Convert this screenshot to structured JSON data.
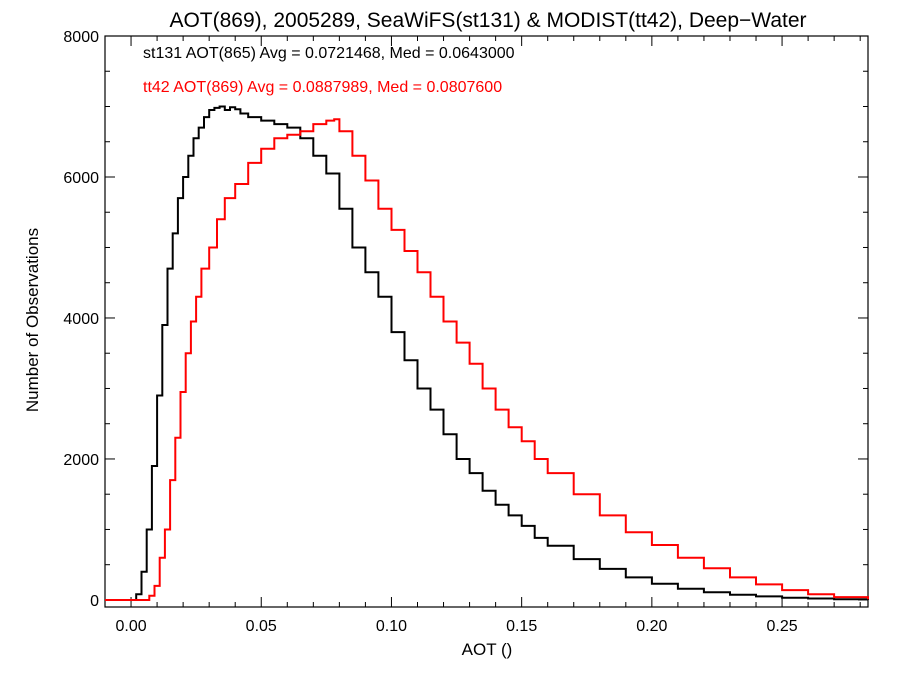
{
  "chart_data": {
    "type": "line",
    "title": "AOT(869), 2005289, SeaWiFS(st131) & MODIST(tt42), Deep−Water",
    "xlabel": "AOT ()",
    "ylabel": "Number of Observations",
    "xlim": [
      -0.01,
      0.283
    ],
    "ylim": [
      -100,
      8000
    ],
    "x_ticks": [
      0.0,
      0.05,
      0.1,
      0.15,
      0.2,
      0.25
    ],
    "x_tick_labels": [
      "0.00",
      "0.05",
      "0.10",
      "0.15",
      "0.20",
      "0.25"
    ],
    "y_ticks": [
      0,
      2000,
      4000,
      6000,
      8000
    ],
    "y_tick_labels": [
      "0",
      "2000",
      "4000",
      "6000",
      "8000"
    ],
    "grid": false,
    "step": true,
    "annotations": [
      {
        "text": "st131 AOT(865) Avg = 0.0721468, Med = 0.0643000",
        "color": "#000000"
      },
      {
        "text": "tt42 AOT(869) Avg = 0.0887989, Med = 0.0807600",
        "color": "#ff0000"
      }
    ],
    "series": [
      {
        "color": "#000000",
        "x": [
          -0.01,
          0.0,
          0.002,
          0.004,
          0.006,
          0.008,
          0.01,
          0.012,
          0.014,
          0.016,
          0.018,
          0.02,
          0.022,
          0.024,
          0.026,
          0.028,
          0.03,
          0.032,
          0.034,
          0.036,
          0.038,
          0.04,
          0.042,
          0.045,
          0.05,
          0.055,
          0.06,
          0.065,
          0.07,
          0.075,
          0.08,
          0.085,
          0.09,
          0.095,
          0.1,
          0.105,
          0.11,
          0.115,
          0.12,
          0.125,
          0.13,
          0.135,
          0.14,
          0.145,
          0.15,
          0.155,
          0.16,
          0.17,
          0.18,
          0.19,
          0.2,
          0.21,
          0.22,
          0.23,
          0.24,
          0.25,
          0.26,
          0.27,
          0.283
        ],
        "y": [
          0,
          0,
          80,
          400,
          1000,
          1900,
          2900,
          3900,
          4700,
          5200,
          5700,
          6000,
          6300,
          6550,
          6700,
          6850,
          6950,
          6980,
          7000,
          6950,
          6990,
          6960,
          6900,
          6850,
          6800,
          6750,
          6700,
          6550,
          6300,
          6050,
          5550,
          5000,
          4650,
          4300,
          3800,
          3400,
          3000,
          2700,
          2350,
          2000,
          1800,
          1550,
          1350,
          1200,
          1050,
          880,
          770,
          580,
          440,
          320,
          230,
          160,
          110,
          75,
          50,
          30,
          20,
          10,
          0
        ]
      },
      {
        "color": "#ff0000",
        "x": [
          -0.01,
          0.005,
          0.007,
          0.009,
          0.011,
          0.013,
          0.015,
          0.017,
          0.019,
          0.021,
          0.023,
          0.025,
          0.027,
          0.03,
          0.033,
          0.036,
          0.04,
          0.045,
          0.05,
          0.055,
          0.06,
          0.065,
          0.07,
          0.075,
          0.078,
          0.08,
          0.085,
          0.09,
          0.095,
          0.1,
          0.105,
          0.11,
          0.115,
          0.12,
          0.125,
          0.13,
          0.135,
          0.14,
          0.145,
          0.15,
          0.155,
          0.16,
          0.17,
          0.18,
          0.19,
          0.2,
          0.21,
          0.22,
          0.23,
          0.24,
          0.25,
          0.26,
          0.27,
          0.283
        ],
        "y": [
          0,
          0,
          60,
          200,
          600,
          1000,
          1700,
          2300,
          2950,
          3500,
          3950,
          4300,
          4700,
          5000,
          5400,
          5700,
          5900,
          6200,
          6400,
          6550,
          6600,
          6650,
          6750,
          6800,
          6820,
          6650,
          6300,
          5950,
          5550,
          5250,
          4950,
          4650,
          4300,
          3950,
          3650,
          3350,
          3000,
          2700,
          2450,
          2250,
          2000,
          1800,
          1500,
          1200,
          960,
          780,
          600,
          450,
          320,
          220,
          140,
          80,
          40,
          10
        ]
      }
    ]
  }
}
